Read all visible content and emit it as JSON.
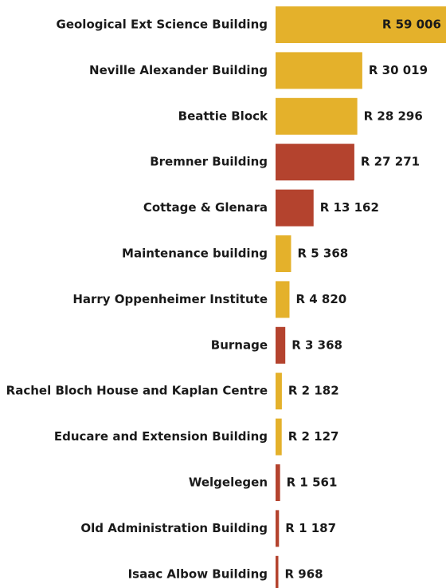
{
  "chart_data": {
    "type": "bar",
    "orientation": "horizontal",
    "categories": [
      "Geological Ext Science Building",
      "Neville Alexander Building",
      "Beattie Block",
      "Bremner Building",
      "Cottage & Glenara",
      "Maintenance building",
      "Harry Oppenheimer Institute",
      "Burnage",
      "Rachel Bloch House and Kaplan Centre",
      "Educare and Extension Building",
      "Welgelegen",
      "Old Administration Building",
      "Isaac Albow Building"
    ],
    "values": [
      59006,
      30019,
      28296,
      27271,
      13162,
      5368,
      4820,
      3368,
      2182,
      2127,
      1561,
      1187,
      968
    ],
    "value_labels": [
      "R 59 006",
      "R 30 019",
      "R 28 296",
      "R 27 271",
      "R 13 162",
      "R 5 368",
      "R 4 820",
      "R 3 368",
      "R 2 182",
      "R 2 127",
      "R 1 561",
      "R 1 187",
      "R 968"
    ],
    "colors": [
      "#e4b12b",
      "#e4b12b",
      "#e4b12b",
      "#b4432e",
      "#b4432e",
      "#e4b12b",
      "#e4b12b",
      "#b4432e",
      "#e4b12b",
      "#e4b12b",
      "#b4432e",
      "#b4432e",
      "#b4432e"
    ]
  }
}
